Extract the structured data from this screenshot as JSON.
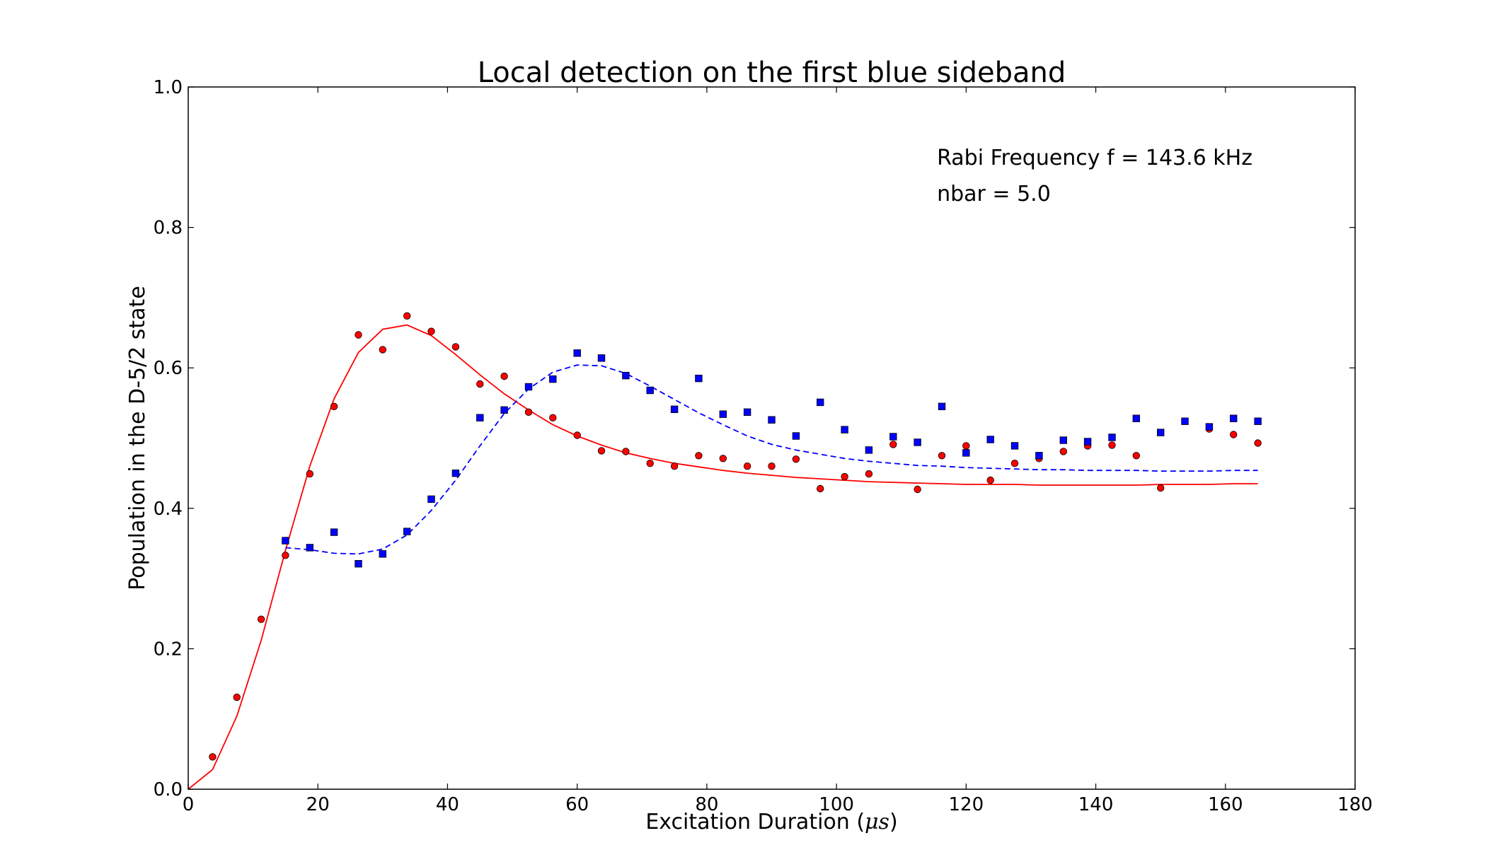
{
  "chart_data": {
    "type": "scatter",
    "title": "Local detection on the first blue sideband",
    "xlabel_text": "Excitation Duration (",
    "xlabel_unit": "μs",
    "xlabel_close": ")",
    "ylabel": "Population in the D-5/2 state",
    "xlim": [
      0,
      180
    ],
    "ylim": [
      0.0,
      1.0
    ],
    "xticks": [
      0,
      20,
      40,
      60,
      80,
      100,
      120,
      140,
      160,
      180
    ],
    "yticks": [
      0.0,
      0.2,
      0.4,
      0.6,
      0.8,
      1.0
    ],
    "annotations": [
      {
        "text": "Rabi Frequency f = 143.6 kHz",
        "x": 115.5,
        "y": 0.889
      },
      {
        "text": "nbar = 5.0",
        "x": 115.5,
        "y": 0.838
      }
    ],
    "colors": {
      "red": "#ff0000",
      "blue": "#0000ff",
      "marker_edge": "#000000"
    },
    "series": [
      {
        "kind": "points",
        "marker": "circle",
        "color": "red",
        "x": [
          3.75,
          7.5,
          11.25,
          15,
          18.75,
          22.5,
          26.25,
          30,
          33.75,
          37.5,
          41.25,
          45,
          48.75,
          52.5,
          56.25,
          60,
          63.75,
          67.5,
          71.25,
          75,
          78.75,
          82.5,
          86.25,
          90,
          93.75,
          97.5,
          101.25,
          105,
          108.75,
          112.5,
          116.25,
          120,
          123.75,
          127.5,
          131.25,
          135,
          138.75,
          142.5,
          146.25,
          150,
          157.5,
          161.25,
          165
        ],
        "y": [
          0.046,
          0.131,
          0.242,
          0.333,
          0.449,
          0.545,
          0.647,
          0.626,
          0.674,
          0.652,
          0.63,
          0.577,
          0.588,
          0.537,
          0.529,
          0.504,
          0.482,
          0.481,
          0.464,
          0.46,
          0.475,
          0.471,
          0.46,
          0.46,
          0.47,
          0.428,
          0.445,
          0.449,
          0.491,
          0.427,
          0.475,
          0.489,
          0.44,
          0.464,
          0.471,
          0.481,
          0.489,
          0.49,
          0.475,
          0.429,
          0.513,
          0.505,
          0.493
        ]
      },
      {
        "kind": "points",
        "marker": "square",
        "color": "blue",
        "x": [
          15,
          18.75,
          22.5,
          26.25,
          30,
          33.75,
          37.5,
          41.25,
          45,
          48.75,
          52.5,
          56.25,
          60,
          63.75,
          67.5,
          71.25,
          75,
          78.75,
          82.5,
          86.25,
          90,
          93.75,
          97.5,
          101.25,
          105,
          108.75,
          112.5,
          116.25,
          120,
          123.75,
          127.5,
          131.25,
          135,
          138.75,
          142.5,
          146.25,
          150,
          153.75,
          157.5,
          161.25,
          165
        ],
        "y": [
          0.354,
          0.344,
          0.366,
          0.321,
          0.335,
          0.367,
          0.413,
          0.45,
          0.529,
          0.54,
          0.573,
          0.584,
          0.621,
          0.614,
          0.589,
          0.568,
          0.541,
          0.585,
          0.534,
          0.537,
          0.526,
          0.503,
          0.551,
          0.512,
          0.483,
          0.502,
          0.494,
          0.545,
          0.479,
          0.498,
          0.489,
          0.475,
          0.497,
          0.495,
          0.501,
          0.528,
          0.508,
          0.524,
          0.516,
          0.528,
          0.524
        ]
      },
      {
        "kind": "line",
        "style": "solid",
        "color": "red",
        "x": [
          0,
          3.75,
          7.5,
          11.25,
          15,
          18.75,
          22.5,
          26.25,
          30,
          33.75,
          37.5,
          41.25,
          45,
          48.75,
          52.5,
          56.25,
          60,
          63.75,
          67.5,
          71.25,
          75,
          78.75,
          82.5,
          86.25,
          90,
          93.75,
          97.5,
          101.25,
          105,
          108.75,
          112.5,
          116.25,
          120,
          123.75,
          127.5,
          131.25,
          135,
          138.75,
          142.5,
          146.25,
          150,
          153.75,
          157.5,
          161.25,
          165
        ],
        "y": [
          0.0,
          0.028,
          0.104,
          0.212,
          0.34,
          0.46,
          0.556,
          0.622,
          0.655,
          0.661,
          0.646,
          0.619,
          0.59,
          0.563,
          0.54,
          0.519,
          0.503,
          0.49,
          0.479,
          0.471,
          0.464,
          0.459,
          0.454,
          0.45,
          0.447,
          0.444,
          0.442,
          0.44,
          0.438,
          0.437,
          0.436,
          0.435,
          0.434,
          0.434,
          0.434,
          0.433,
          0.433,
          0.433,
          0.433,
          0.433,
          0.434,
          0.434,
          0.434,
          0.435,
          0.435
        ]
      },
      {
        "kind": "line",
        "style": "dashed",
        "color": "blue",
        "x": [
          15,
          18.75,
          22.5,
          26.25,
          30,
          33.75,
          37.5,
          41.25,
          45,
          48.75,
          52.5,
          56.25,
          60,
          63.75,
          67.5,
          71.25,
          75,
          78.75,
          82.5,
          86.25,
          90,
          93.75,
          97.5,
          101.25,
          105,
          108.75,
          112.5,
          116.25,
          120,
          123.75,
          127.5,
          131.25,
          135,
          138.75,
          142.5,
          146.25,
          150,
          153.75,
          157.5,
          161.25,
          165
        ],
        "y": [
          0.344,
          0.341,
          0.336,
          0.335,
          0.342,
          0.362,
          0.397,
          0.44,
          0.489,
          0.535,
          0.57,
          0.594,
          0.604,
          0.603,
          0.592,
          0.574,
          0.555,
          0.536,
          0.519,
          0.503,
          0.491,
          0.483,
          0.477,
          0.471,
          0.467,
          0.464,
          0.461,
          0.46,
          0.458,
          0.457,
          0.456,
          0.455,
          0.455,
          0.454,
          0.454,
          0.454,
          0.453,
          0.453,
          0.453,
          0.454,
          0.454
        ]
      }
    ]
  }
}
